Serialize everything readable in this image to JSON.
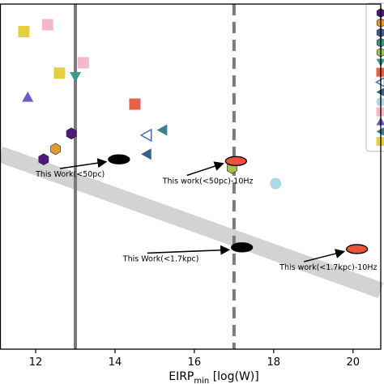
{
  "chart_data": {
    "type": "scatter",
    "xlabel": "EIRP",
    "xlabel_sub": "min",
    "xlabel_unit": "[log(W)]",
    "xlim": [
      11.1,
      20.7
    ],
    "ylim": [
      0,
      100
    ],
    "x_ticks": [
      12,
      14,
      16,
      18,
      20
    ],
    "colors": {
      "reference_line": "#7a7a7a",
      "band": "#d3d3d3",
      "this_work_marker": "#000000",
      "this_work_10hz_marker": "#e8533a"
    },
    "vertical_lines": [
      {
        "x": 13.0,
        "style": "solid"
      },
      {
        "x": 17.0,
        "style": "dashed"
      }
    ],
    "band": {
      "x0": 11.1,
      "y0": 56.5,
      "x1": 20.7,
      "y1": 17.0
    },
    "points": [
      {
        "x": 11.7,
        "y": 92.0,
        "marker": "square",
        "color": "#e6cf3c"
      },
      {
        "x": 12.3,
        "y": 94.0,
        "marker": "square",
        "color": "#f4b8c8"
      },
      {
        "x": 12.6,
        "y": 80.0,
        "marker": "square",
        "color": "#e6cf3c"
      },
      {
        "x": 13.2,
        "y": 83.0,
        "marker": "square",
        "color": "#f4b8c8"
      },
      {
        "x": 13.0,
        "y": 79.0,
        "marker": "triangle-down",
        "color": "#3d9a8b"
      },
      {
        "x": 11.8,
        "y": 73.0,
        "marker": "triangle-up",
        "color": "#6a5acd"
      },
      {
        "x": 14.5,
        "y": 71.0,
        "marker": "square",
        "color": "#e8604a"
      },
      {
        "x": 14.8,
        "y": 62.0,
        "marker": "triangle-left-open",
        "color": "#4a6ea9"
      },
      {
        "x": 15.2,
        "y": 63.5,
        "marker": "triangle-left",
        "color": "#3d7f8a"
      },
      {
        "x": 12.9,
        "y": 62.5,
        "marker": "hexagon",
        "color": "#4b1a7a"
      },
      {
        "x": 12.5,
        "y": 58.0,
        "marker": "hexagon",
        "color": "#e39b35"
      },
      {
        "x": 12.2,
        "y": 55.0,
        "marker": "hexagon",
        "color": "#4b1a7a"
      },
      {
        "x": 14.8,
        "y": 56.5,
        "marker": "triangle-left",
        "color": "#3d5f8a"
      },
      {
        "x": 16.95,
        "y": 52.5,
        "marker": "hexagon",
        "color": "#a3c24a"
      },
      {
        "x": 18.05,
        "y": 48.0,
        "marker": "circle",
        "color": "#add8e6"
      }
    ],
    "annotations": [
      {
        "label": "This Work(<50pc)",
        "x": 14.1,
        "y": 55.0,
        "text_x": 12.0,
        "text_y": 50.0,
        "color": "#000000"
      },
      {
        "label": "This work(<50pc)-10Hz",
        "x": 17.05,
        "y": 54.5,
        "text_x": 15.2,
        "text_y": 48.0,
        "color": "#e8533a"
      },
      {
        "label": "This Work(<1.7kpc)",
        "x": 17.2,
        "y": 29.5,
        "text_x": 14.2,
        "text_y": 25.5,
        "color": "#000000"
      },
      {
        "label": "This work(<1.7kpc)-10Hz",
        "x": 20.1,
        "y": 29.0,
        "text_x": 18.15,
        "text_y": 23.0,
        "color": "#e8533a"
      }
    ]
  },
  "legend_swatches": [
    {
      "marker": "hexagon",
      "color": "#4b1a7a"
    },
    {
      "marker": "hexagon",
      "color": "#e39b35"
    },
    {
      "marker": "hexagon",
      "color": "#3a5f9a"
    },
    {
      "marker": "hexagon",
      "color": "#3d9a8b"
    },
    {
      "marker": "hexagon",
      "color": "#a3c24a"
    },
    {
      "marker": "triangle-down",
      "color": "#3d9a8b"
    },
    {
      "marker": "square",
      "color": "#e8604a"
    },
    {
      "marker": "triangle-left-open",
      "color": "#4a6ea9"
    },
    {
      "marker": "triangle-left",
      "color": "#3d5f8a"
    },
    {
      "marker": "circle",
      "color": "#add8e6"
    },
    {
      "marker": "square",
      "color": "#f4b8c8"
    },
    {
      "marker": "triangle-up",
      "color": "#6a5acd"
    },
    {
      "marker": "triangle-left",
      "color": "#3d7f8a"
    },
    {
      "marker": "square",
      "color": "#e6cf3c"
    }
  ]
}
